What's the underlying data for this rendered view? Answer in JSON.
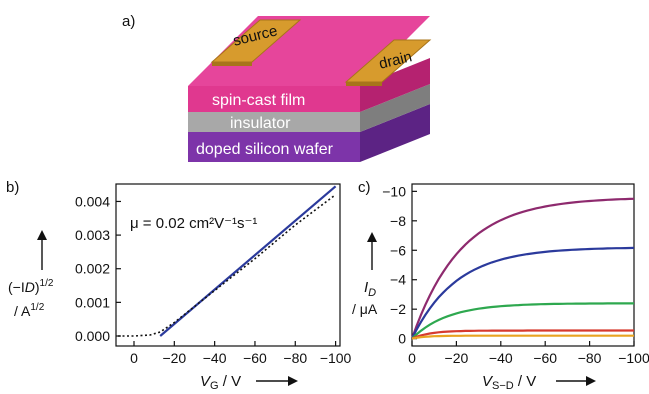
{
  "panel_a": {
    "label": "a)",
    "layers": [
      {
        "text": "spin-cast film",
        "color": "#e0388f"
      },
      {
        "text": "insulator",
        "color": "#a8a8a8"
      },
      {
        "text": "doped silicon wafer",
        "color": "#7d34a9"
      }
    ],
    "electrodes": [
      {
        "text": "source",
        "color": "#d79b2d"
      },
      {
        "text": "drain",
        "color": "#d79b2d"
      }
    ]
  },
  "chart_data": [
    {
      "panel": "b)",
      "type": "line",
      "ylabel_line1": "(−I",
      "ylabel_sub": "D",
      "ylabel_line1_end": ")",
      "ylabel_exp": "1/2",
      "ylabel_line2": "/ A",
      "ylabel_line2_exp": "1/2",
      "xlabel": "V",
      "xlabel_sub": "G",
      "xlabel_unit": " / V",
      "annotation": "μ = 0.02 cm²V⁻¹s⁻¹",
      "xlim": [
        0,
        -100
      ],
      "ylim": [
        0,
        0.0044
      ],
      "xticks": [
        0,
        -20,
        -40,
        -60,
        -80,
        -100
      ],
      "xtick_labels": [
        "0",
        "−20",
        "−40",
        "−60",
        "−80",
        "−100"
      ],
      "yticks": [
        0.0,
        0.001,
        0.002,
        0.003,
        0.004
      ],
      "ytick_labels": [
        "0.000",
        "0.001",
        "0.002",
        "0.003",
        "0.004"
      ],
      "series": [
        {
          "style": "solid",
          "color": "#2b3a9c",
          "x": [
            -13,
            -100
          ],
          "y": [
            0.0,
            0.00445
          ]
        },
        {
          "style": "dotted",
          "color": "#111111",
          "x": [
            8,
            0,
            -8,
            -13,
            -20,
            -40,
            -60,
            -80,
            -100
          ],
          "y": [
            0.0,
            0.0,
            3e-05,
            0.00012,
            0.0004,
            0.00135,
            0.0023,
            0.0033,
            0.0042
          ]
        }
      ]
    },
    {
      "panel": "c)",
      "type": "line",
      "ylabel": "I",
      "ylabel_sub": "D",
      "ylabel_unit": "/ μA",
      "xlabel": "V",
      "xlabel_sub": "S−D",
      "xlabel_unit": " / V",
      "xlim": [
        0,
        -100
      ],
      "ylim": [
        0.5,
        -10.5
      ],
      "xticks": [
        0,
        -20,
        -40,
        -60,
        -80,
        -100
      ],
      "xtick_labels": [
        "0",
        "−20",
        "−40",
        "−60",
        "−80",
        "−100"
      ],
      "yticks": [
        0,
        -2,
        -4,
        -6,
        -8,
        -10
      ],
      "ytick_labels": [
        "0",
        "−2",
        "−4",
        "−6",
        "−8",
        "−10"
      ],
      "series": [
        {
          "color": "#8e2a6e",
          "saturation": -9.6,
          "scale": 22
        },
        {
          "color": "#2b3a9c",
          "saturation": -6.2,
          "scale": 20
        },
        {
          "color": "#2ea84f",
          "saturation": -2.4,
          "scale": 16
        },
        {
          "color": "#d63a2f",
          "saturation": -0.55,
          "scale": 8
        },
        {
          "color": "#e9a321",
          "saturation": -0.2,
          "scale": 6
        }
      ]
    }
  ]
}
